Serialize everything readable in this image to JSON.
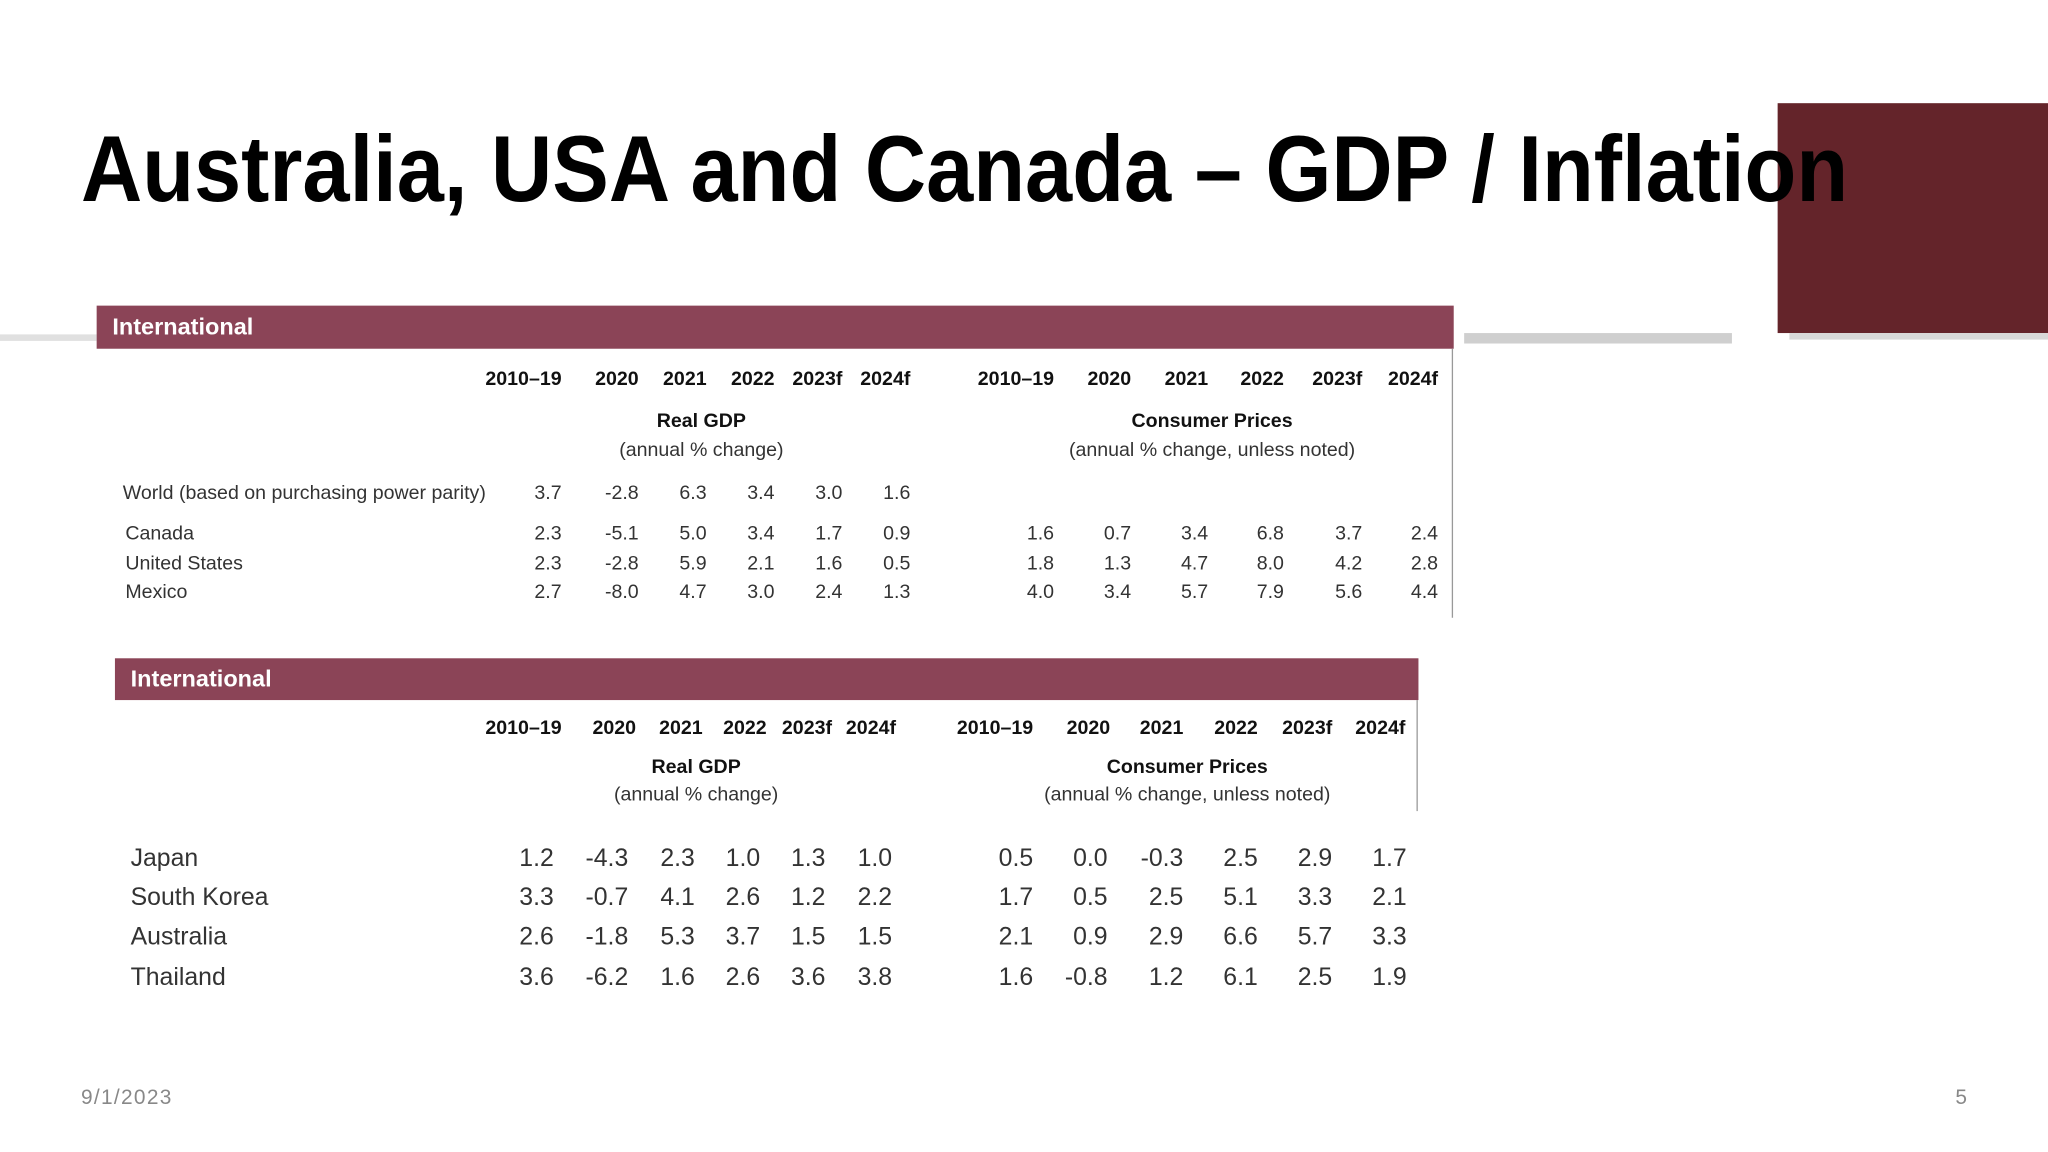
{
  "title": "Australia, USA and Canada – GDP / Inflation",
  "tables": [
    {
      "header": "International",
      "columns": [
        "2010–19",
        "2020",
        "2021",
        "2022",
        "2023f",
        "2024f",
        "2010–19",
        "2020",
        "2021",
        "2022",
        "2023f",
        "2024f"
      ],
      "groups": [
        {
          "label": "Real GDP",
          "sublabel": "(annual % change)"
        },
        {
          "label": "Consumer Prices",
          "sublabel": "(annual % change, unless noted)"
        }
      ],
      "rows": [
        {
          "label": "World (based on purchasing power parity)",
          "values": [
            "3.7",
            "-2.8",
            "6.3",
            "3.4",
            "3.0",
            "1.6"
          ]
        },
        {
          "label": "Canada",
          "values": [
            "2.3",
            "-5.1",
            "5.0",
            "3.4",
            "1.7",
            "0.9",
            "1.6",
            "0.7",
            "3.4",
            "6.8",
            "3.7",
            "2.4"
          ]
        },
        {
          "label": "United States",
          "values": [
            "2.3",
            "-2.8",
            "5.9",
            "2.1",
            "1.6",
            "0.5",
            "1.8",
            "1.3",
            "4.7",
            "8.0",
            "4.2",
            "2.8"
          ]
        },
        {
          "label": "Mexico",
          "values": [
            "2.7",
            "-8.0",
            "4.7",
            "3.0",
            "2.4",
            "1.3",
            "4.0",
            "3.4",
            "5.7",
            "7.9",
            "5.6",
            "4.4"
          ]
        }
      ]
    },
    {
      "header": "International",
      "columns": [
        "2010–19",
        "2020",
        "2021",
        "2022",
        "2023f",
        "2024f",
        "2010–19",
        "2020",
        "2021",
        "2022",
        "2023f",
        "2024f"
      ],
      "groups": [
        {
          "label": "Real GDP",
          "sublabel": "(annual % change)"
        },
        {
          "label": "Consumer Prices",
          "sublabel": "(annual % change, unless noted)"
        }
      ],
      "rows": [
        {
          "label": "Japan",
          "values": [
            "1.2",
            "-4.3",
            "2.3",
            "1.0",
            "1.3",
            "1.0",
            "0.5",
            "0.0",
            "-0.3",
            "2.5",
            "2.9",
            "1.7"
          ]
        },
        {
          "label": "South Korea",
          "values": [
            "3.3",
            "-0.7",
            "4.1",
            "2.6",
            "1.2",
            "2.2",
            "1.7",
            "0.5",
            "2.5",
            "5.1",
            "3.3",
            "2.1"
          ]
        },
        {
          "label": "Australia",
          "values": [
            "2.6",
            "-1.8",
            "5.3",
            "3.7",
            "1.5",
            "1.5",
            "2.1",
            "0.9",
            "2.9",
            "6.6",
            "5.7",
            "3.3"
          ]
        },
        {
          "label": "Thailand",
          "values": [
            "3.6",
            "-6.2",
            "1.6",
            "2.6",
            "3.6",
            "3.8",
            "1.6",
            "-0.8",
            "1.2",
            "6.1",
            "2.5",
            "1.9"
          ]
        }
      ]
    }
  ],
  "footer": {
    "date": "9/1/2023",
    "page": "5"
  }
}
